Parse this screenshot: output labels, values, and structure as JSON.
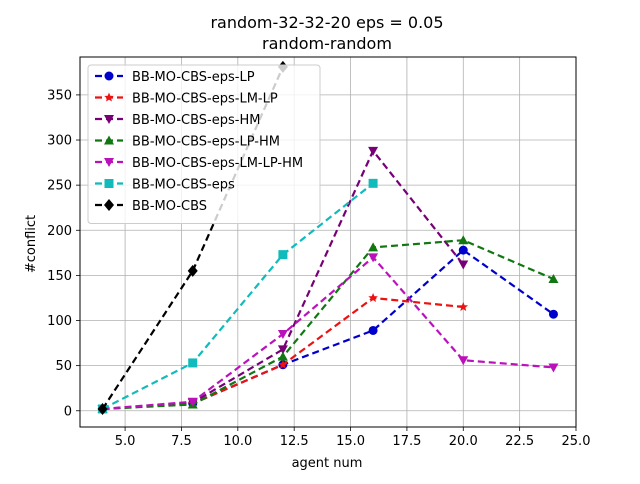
{
  "chart_data": {
    "type": "line",
    "title_line1": "random-32-32-20    eps = 0.05",
    "title_line2": "random-random",
    "xlabel": "agent num",
    "ylabel": "#conflict",
    "xlim": [
      3.0,
      25.0
    ],
    "ylim": [
      -18,
      392
    ],
    "xticks": [
      5.0,
      7.5,
      10.0,
      12.5,
      15.0,
      17.5,
      20.0,
      22.5,
      25.0
    ],
    "xtick_labels": [
      "5.0",
      "7.5",
      "10.0",
      "12.5",
      "15.0",
      "17.5",
      "20.0",
      "22.5",
      "25.0"
    ],
    "yticks": [
      0,
      50,
      100,
      150,
      200,
      250,
      300,
      350
    ],
    "ytick_labels": [
      "0",
      "50",
      "100",
      "150",
      "200",
      "250",
      "300",
      "350"
    ],
    "grid": true,
    "legend_position": "top-left",
    "series": [
      {
        "name": "BB-MO-CBS-eps-LP",
        "color": "#0000cc",
        "marker": "circle",
        "x": [
          4,
          8,
          12,
          16,
          20,
          24
        ],
        "y": [
          2,
          8,
          51,
          89,
          178,
          107
        ]
      },
      {
        "name": "BB-MO-CBS-eps-LM-LP",
        "color": "#ee1111",
        "marker": "star",
        "x": [
          4,
          8,
          12,
          16,
          20
        ],
        "y": [
          2,
          8,
          51,
          125,
          115
        ]
      },
      {
        "name": "BB-MO-CBS-eps-HM",
        "color": "#770077",
        "marker": "triangle-down",
        "x": [
          4,
          8,
          12,
          16,
          20
        ],
        "y": [
          2,
          9,
          68,
          288,
          162
        ]
      },
      {
        "name": "BB-MO-CBS-eps-LP-HM",
        "color": "#117711",
        "marker": "triangle-up",
        "x": [
          4,
          8,
          12,
          16,
          20,
          24
        ],
        "y": [
          2,
          7,
          60,
          181,
          189,
          146
        ]
      },
      {
        "name": "BB-MO-CBS-eps-LM-LP-HM",
        "color": "#bb11bb",
        "marker": "triangle-down",
        "x": [
          4,
          8,
          12,
          16,
          20,
          24
        ],
        "y": [
          2,
          10,
          85,
          170,
          56,
          48
        ]
      },
      {
        "name": "BB-MO-CBS-eps",
        "color": "#11bbbb",
        "marker": "square",
        "x": [
          4,
          8,
          12,
          16
        ],
        "y": [
          2,
          53,
          173,
          252
        ]
      },
      {
        "name": "BB-MO-CBS",
        "color": "#000000",
        "marker": "diamond",
        "x": [
          4,
          8,
          12
        ],
        "y": [
          2,
          155,
          381
        ]
      }
    ]
  }
}
